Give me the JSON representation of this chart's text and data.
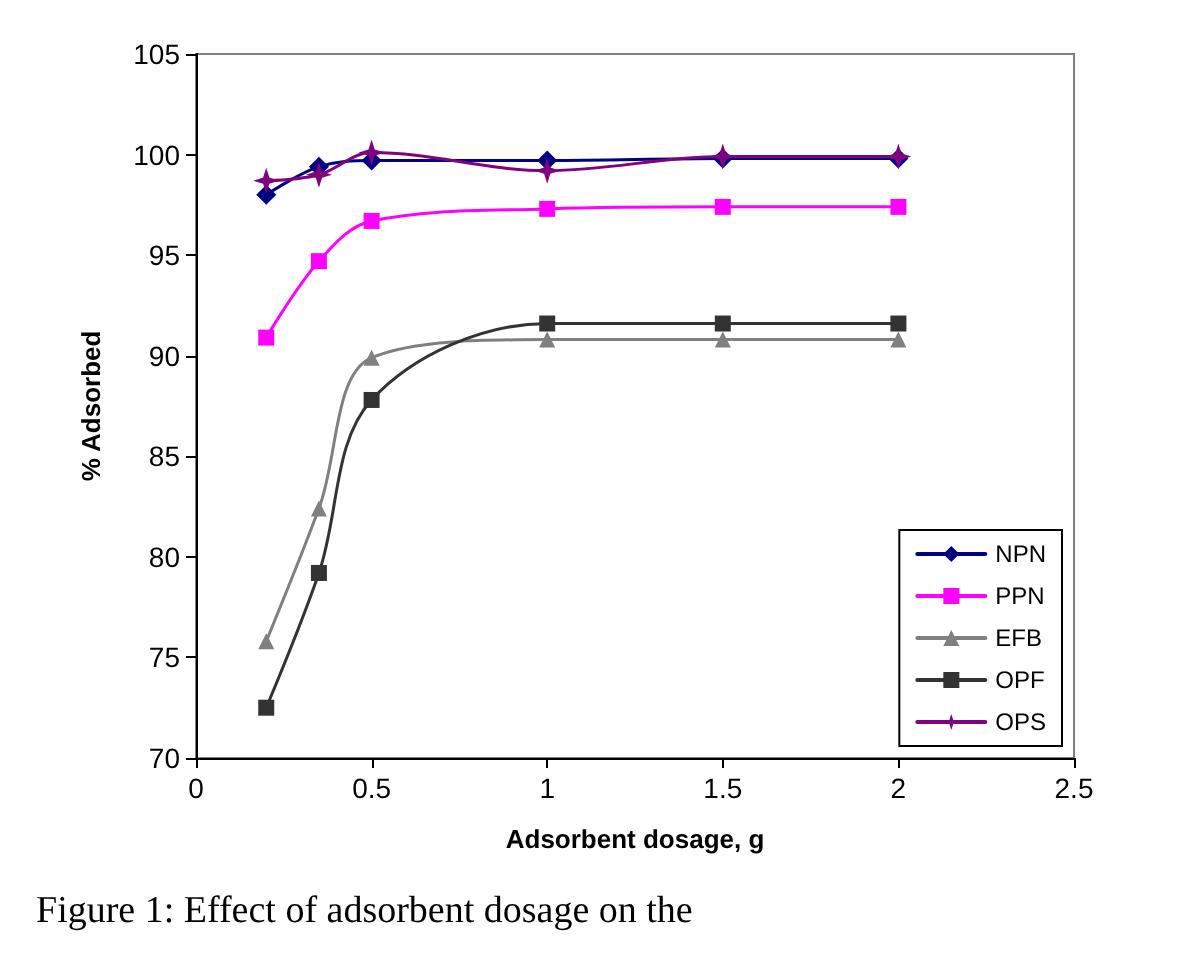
{
  "chart_data": {
    "type": "line",
    "xlabel": "Adsorbent dosage, g",
    "ylabel": "% Adsorbed",
    "x": [
      0.2,
      0.35,
      0.5,
      1,
      1.5,
      2
    ],
    "series": [
      {
        "name": "NPN",
        "color": "#000080",
        "marker": "diamond",
        "values": [
          98.0,
          99.4,
          99.7,
          99.7,
          99.8,
          99.8
        ]
      },
      {
        "name": "PPN",
        "color": "#ff00ff",
        "marker": "square",
        "values": [
          90.9,
          94.7,
          96.7,
          97.3,
          97.4,
          97.4
        ]
      },
      {
        "name": "EFB",
        "color": "#808080",
        "marker": "triangle",
        "values": [
          75.8,
          82.4,
          89.9,
          90.8,
          90.8,
          90.8
        ]
      },
      {
        "name": "OPF",
        "color": "#333333",
        "marker": "square",
        "values": [
          72.5,
          79.2,
          87.8,
          91.6,
          91.6,
          91.6
        ]
      },
      {
        "name": "OPS",
        "color": "#800080",
        "marker": "star",
        "values": [
          98.7,
          99.0,
          100.1,
          99.2,
          99.9,
          99.9
        ]
      }
    ],
    "xlim": [
      0,
      2.5
    ],
    "xticks": [
      0,
      0.5,
      1,
      1.5,
      2,
      2.5
    ],
    "ylim": [
      70,
      105
    ],
    "yticks": [
      70,
      75,
      80,
      85,
      90,
      95,
      100,
      105
    ],
    "grid": false,
    "legend": "bottom right",
    "annotations": [
      "Figure 1: Effect of adsorbent dosage on the"
    ]
  }
}
